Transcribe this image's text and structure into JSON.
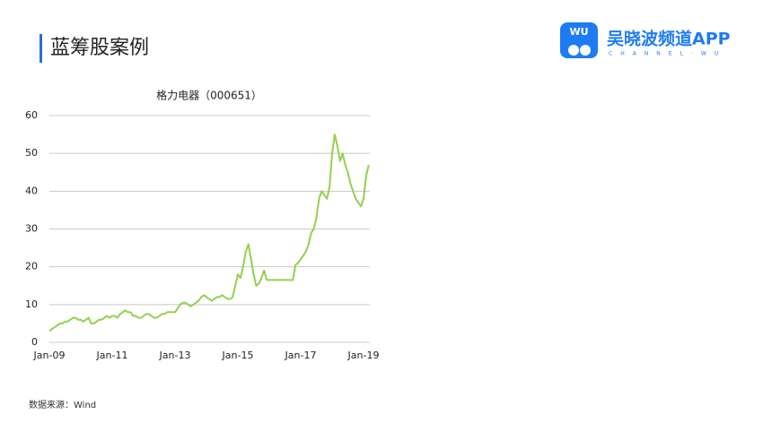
{
  "slide": {
    "title": "蓝筹股案例",
    "logo_badge": "WU",
    "logo_name": "吴晓波频道APP",
    "logo_sub": "CHANNEL·WU",
    "source": "数据来源：Wind"
  },
  "chart_data": {
    "type": "line",
    "title": "格力电器（000651）",
    "categories": [
      "Jan-09",
      null,
      null,
      null,
      null,
      null,
      null,
      null,
      null,
      null,
      null,
      null,
      null,
      null,
      null,
      null,
      null,
      null,
      null,
      null,
      null,
      null,
      null,
      null,
      "Jan-11",
      null,
      null,
      null,
      null,
      null,
      null,
      null,
      null,
      null,
      null,
      null,
      null,
      null,
      null,
      null,
      null,
      null,
      null,
      null,
      null,
      null,
      null,
      null,
      "Jan-13",
      null,
      null,
      null,
      null,
      null,
      null,
      null,
      null,
      null,
      null,
      null,
      null,
      null,
      null,
      null,
      null,
      null,
      null,
      null,
      null,
      null,
      null,
      null,
      "Jan-15",
      null,
      null,
      null,
      null,
      null,
      null,
      null,
      null,
      null,
      null,
      null,
      null,
      null,
      null,
      null,
      null,
      null,
      null,
      null,
      null,
      null,
      null,
      null,
      "Jan-17",
      null,
      null,
      null,
      null,
      null,
      null,
      null,
      null,
      null,
      null,
      null,
      null,
      null,
      null,
      null,
      null,
      null,
      null,
      null,
      null,
      null,
      null,
      null,
      "Jan-19",
      null,
      null
    ],
    "values": [
      3,
      3.5,
      4,
      4.5,
      5,
      5,
      5.5,
      5.5,
      6,
      6.5,
      6.5,
      6,
      6,
      5.5,
      6,
      6.5,
      5,
      5,
      5.5,
      6,
      6,
      6.5,
      7,
      6.5,
      7,
      7,
      6.5,
      7.5,
      8,
      8.5,
      8,
      8,
      7,
      7,
      6.5,
      6.5,
      7,
      7.5,
      7.5,
      7,
      6.5,
      6.5,
      7,
      7.5,
      7.5,
      8,
      8,
      8,
      8,
      9,
      10,
      10.5,
      10.5,
      10,
      9.5,
      10,
      10.5,
      11,
      12,
      12.5,
      12,
      11.5,
      11,
      11.5,
      12,
      12,
      12.5,
      12,
      11.5,
      11.5,
      12,
      15,
      18,
      17,
      20,
      24,
      26,
      22,
      18,
      15,
      15.5,
      17,
      19,
      16.5,
      16.5,
      16.5,
      16.5,
      16.5,
      16.5,
      16.5,
      16.5,
      16.5,
      16.5,
      16.5,
      20.5,
      21,
      22,
      23,
      24,
      26,
      29,
      30,
      33,
      38,
      40,
      39,
      38,
      41,
      50,
      55,
      52,
      48,
      50,
      47,
      45,
      42,
      40,
      38,
      37,
      36,
      38,
      44,
      47
    ],
    "color": "#92d050",
    "ylim": [
      0,
      60
    ],
    "yticks": [
      0,
      10,
      20,
      30,
      40,
      50,
      60
    ],
    "grid": true
  }
}
